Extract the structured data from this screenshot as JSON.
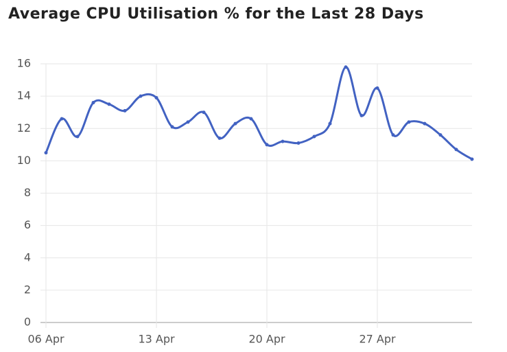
{
  "chart_data": {
    "type": "line",
    "title": "Average CPU Utilisation % for the Last 28 Days",
    "categories": [
      "06 Apr",
      null,
      null,
      null,
      null,
      null,
      null,
      "13 Apr",
      null,
      null,
      null,
      null,
      null,
      null,
      "20 Apr",
      null,
      null,
      null,
      null,
      null,
      null,
      "27 Apr",
      null,
      null,
      null,
      null,
      null,
      null
    ],
    "values": [
      10.5,
      12.6,
      11.5,
      13.6,
      13.5,
      13.1,
      14.0,
      13.9,
      12.1,
      12.4,
      13.0,
      11.4,
      12.3,
      12.6,
      11.0,
      11.2,
      11.1,
      11.5,
      12.3,
      15.8,
      12.8,
      14.5,
      11.6,
      12.4,
      12.3,
      11.6,
      10.7,
      10.1
    ],
    "color": "#4262c2",
    "ylim": [
      0,
      16
    ],
    "yticks": [
      0,
      2,
      4,
      6,
      8,
      10,
      12,
      14,
      16
    ],
    "grid": true,
    "smooth": true
  }
}
